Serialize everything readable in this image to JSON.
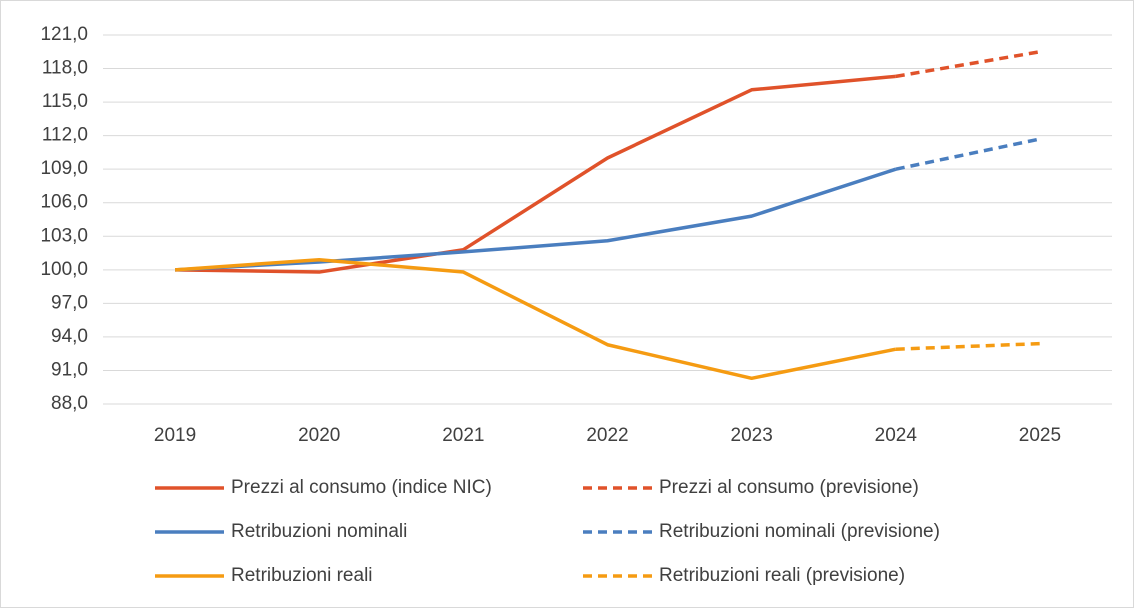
{
  "chart_data": {
    "type": "line",
    "categories": [
      "2019",
      "2020",
      "2021",
      "2022",
      "2023",
      "2024",
      "2025"
    ],
    "series": [
      {
        "name": "Prezzi al consumo (indice NIC)",
        "color": "#e0522a",
        "dashed": false,
        "values": [
          100,
          99.8,
          101.8,
          110.0,
          116.1,
          117.3,
          null
        ]
      },
      {
        "name": "Prezzi al consumo (previsione)",
        "color": "#e0522a",
        "dashed": true,
        "values": [
          null,
          null,
          null,
          null,
          null,
          117.3,
          119.5
        ]
      },
      {
        "name": "Retribuzioni nominali",
        "color": "#4a7ebf",
        "dashed": false,
        "values": [
          100,
          100.7,
          101.6,
          102.6,
          104.8,
          109.0,
          null
        ]
      },
      {
        "name": "Retribuzioni nominali (previsione)",
        "color": "#4a7ebf",
        "dashed": true,
        "values": [
          null,
          null,
          null,
          null,
          null,
          109.0,
          111.7
        ]
      },
      {
        "name": "Retribuzioni reali",
        "color": "#f59b12",
        "dashed": false,
        "values": [
          100,
          100.9,
          99.8,
          93.3,
          90.3,
          92.9,
          null
        ]
      },
      {
        "name": "Retribuzioni reali (previsione)",
        "color": "#f59b12",
        "dashed": true,
        "values": [
          null,
          null,
          null,
          null,
          null,
          92.9,
          93.4
        ]
      }
    ],
    "ylim": [
      88,
      121
    ],
    "yticks": [
      {
        "value": 88,
        "label": "88,0"
      },
      {
        "value": 91,
        "label": "91,0"
      },
      {
        "value": 94,
        "label": "94,0"
      },
      {
        "value": 97,
        "label": "97,0"
      },
      {
        "value": 100,
        "label": "100,0"
      },
      {
        "value": 103,
        "label": "103,0"
      },
      {
        "value": 106,
        "label": "106,0"
      },
      {
        "value": 109,
        "label": "109,0"
      },
      {
        "value": 112,
        "label": "112,0"
      },
      {
        "value": 115,
        "label": "115,0"
      },
      {
        "value": 118,
        "label": "118,0"
      },
      {
        "value": 121,
        "label": "121,0"
      }
    ],
    "grid": true,
    "legend": "bottom"
  }
}
